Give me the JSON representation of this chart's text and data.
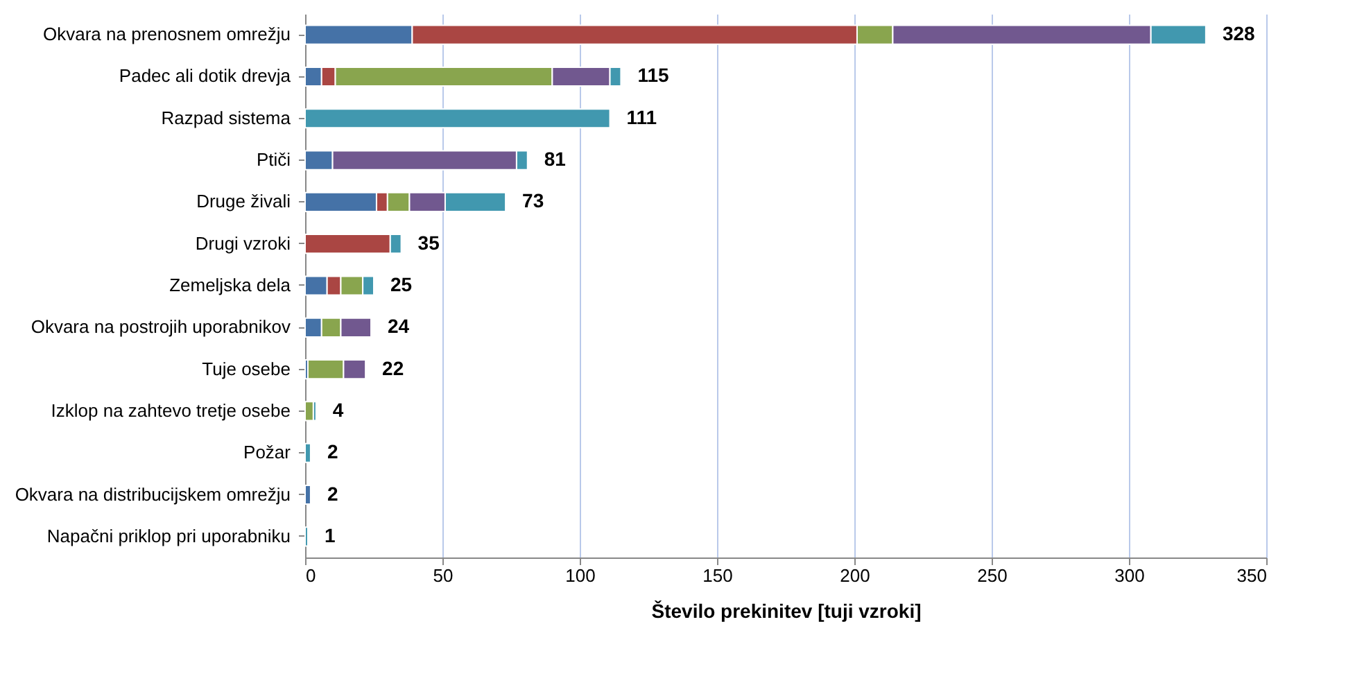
{
  "chart_data": {
    "type": "bar",
    "orientation": "horizontal",
    "stacked": true,
    "xlabel": "Število prekinitev [tuji vzroki]",
    "categories": [
      "Okvara na prenosnem omrežju",
      "Padec ali dotik drevja",
      "Razpad sistema",
      "Ptiči",
      "Druge živali",
      "Drugi vzroki",
      "Zemeljska dela",
      "Okvara na postrojih uporabnikov",
      "Tuje osebe",
      "Izklop na zahtevo tretje osebe",
      "Požar",
      "Okvara na distribucijskem omrežju",
      "Napačni priklop pri uporabniku"
    ],
    "series": [
      {
        "color": "#4572a7",
        "values": [
          39,
          6,
          null,
          10,
          26,
          null,
          8,
          6,
          1,
          null,
          null,
          2,
          null
        ]
      },
      {
        "color": "#aa4643",
        "values": [
          162,
          5,
          null,
          null,
          4,
          31,
          5,
          null,
          null,
          null,
          null,
          null,
          null
        ]
      },
      {
        "color": "#89a54e",
        "values": [
          13,
          79,
          null,
          null,
          8,
          null,
          8,
          7,
          13,
          3,
          null,
          null,
          null
        ]
      },
      {
        "color": "#71588f",
        "values": [
          94,
          21,
          null,
          67,
          13,
          null,
          null,
          11,
          8,
          null,
          null,
          null,
          null
        ]
      },
      {
        "color": "#4198af",
        "values": [
          20,
          4,
          111,
          4,
          22,
          4,
          4,
          null,
          null,
          1,
          2,
          null,
          1
        ]
      }
    ],
    "totals": [
      "328",
      "115",
      "111",
      "81",
      "73",
      "35",
      "25",
      "24",
      "22",
      "4",
      "2",
      "2",
      "1"
    ],
    "xlim": [
      0,
      350
    ],
    "xticks": [
      0,
      50,
      100,
      150,
      200,
      250,
      300,
      350
    ],
    "grid": "x",
    "legend": false
  }
}
